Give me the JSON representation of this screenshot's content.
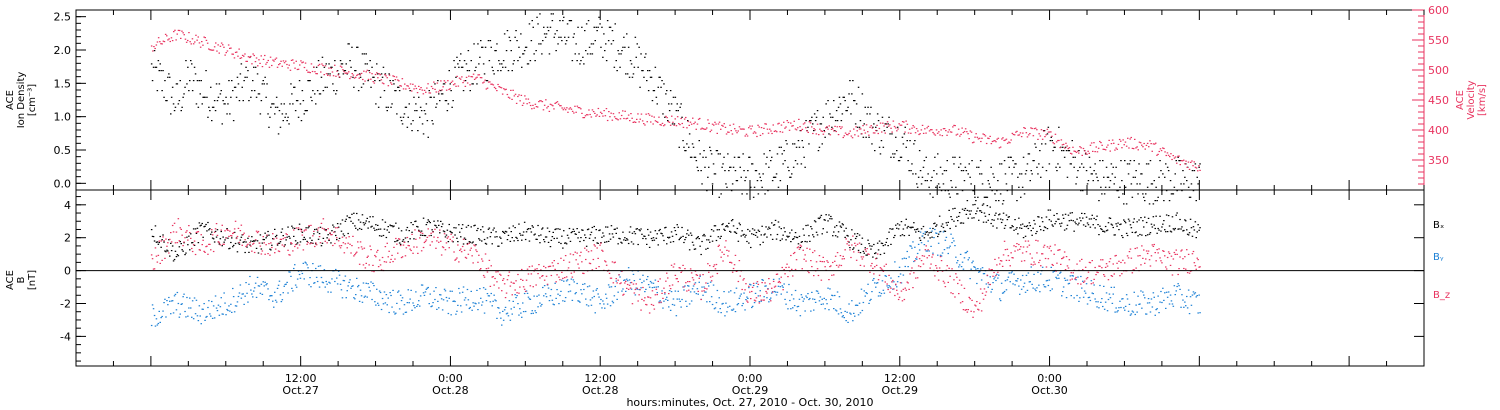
{
  "colors": {
    "black": "#000000",
    "pink": "#e8335f",
    "blue": "#1e82d6"
  },
  "chart_data": [
    {
      "type": "scatter",
      "ylabel": [
        "ACE",
        "Ion Density",
        "[cm⁻³]"
      ],
      "y2label": [
        "ACE",
        "Velocity",
        "[km/s]"
      ],
      "ylim": [
        -0.1,
        2.6
      ],
      "yticks": [
        0.0,
        0.5,
        1.0,
        1.5,
        2.0,
        2.5
      ],
      "ytick_labels": [
        "0.0",
        "0.5",
        "1.0",
        "1.5",
        "2.0",
        "2.5"
      ],
      "y2lim": [
        300,
        600
      ],
      "y2ticks": [
        350,
        400,
        450,
        500,
        550,
        600
      ],
      "y2tick_labels": [
        "350",
        "400",
        "450",
        "500",
        "550",
        "600"
      ],
      "series": [
        {
          "axis": "left",
          "color": "#000000",
          "x": [
            0,
            1,
            2,
            3,
            4,
            6,
            8,
            10,
            12,
            14,
            16,
            18,
            20,
            22,
            24,
            26,
            28,
            30,
            31,
            32,
            34,
            36,
            38,
            40,
            42,
            44,
            46,
            48,
            50,
            52,
            54,
            56,
            58,
            60,
            62,
            64,
            66,
            68,
            70,
            72,
            74,
            76,
            78,
            80,
            82,
            84
          ],
          "y": [
            1.7,
            1.5,
            1.2,
            1.6,
            1.4,
            1.2,
            1.6,
            1.0,
            1.3,
            1.6,
            1.8,
            1.5,
            1.2,
            1.0,
            1.5,
            1.8,
            2.0,
            2.1,
            2.2,
            2.3,
            2.1,
            2.2,
            2.0,
            1.6,
            1.0,
            0.3,
            0.1,
            0.1,
            0.2,
            0.5,
            1.0,
            1.3,
            0.8,
            0.7,
            0.1,
            0.1,
            0.05,
            0.05,
            0.1,
            0.6,
            0.3,
            0.05,
            0.05,
            0.05,
            0.05,
            0.05
          ]
        },
        {
          "axis": "right",
          "color": "#e8335f",
          "x": [
            0,
            2,
            4,
            6,
            8,
            10,
            12,
            14,
            16,
            18,
            20,
            22,
            24,
            26,
            28,
            30,
            32,
            34,
            36,
            38,
            40,
            42,
            44,
            46,
            48,
            50,
            52,
            54,
            56,
            58,
            60,
            62,
            64,
            66,
            68,
            70,
            72,
            74,
            76,
            78,
            80,
            82,
            84
          ],
          "y": [
            540,
            560,
            548,
            535,
            520,
            512,
            508,
            502,
            496,
            488,
            478,
            468,
            478,
            488,
            466,
            448,
            440,
            433,
            428,
            423,
            418,
            416,
            411,
            402,
            398,
            405,
            410,
            400,
            395,
            404,
            408,
            400,
            402,
            388,
            380,
            398,
            392,
            365,
            372,
            380,
            375,
            352,
            340
          ]
        }
      ]
    },
    {
      "type": "scatter",
      "ylabel": [
        "ACE",
        "B",
        "[nT]"
      ],
      "ylim": [
        -5.8,
        4.9
      ],
      "yticks": [
        -4,
        -2,
        0,
        2,
        4
      ],
      "ytick_labels": [
        "-4",
        "-2",
        "0",
        "2",
        "4"
      ],
      "series": [
        {
          "name": "Bₓ",
          "color": "#000000",
          "x": [
            0,
            2,
            4,
            6,
            8,
            10,
            12,
            14,
            16,
            18,
            20,
            22,
            24,
            26,
            28,
            30,
            32,
            34,
            36,
            38,
            40,
            42,
            44,
            46,
            48,
            50,
            52,
            54,
            56,
            58,
            60,
            62,
            64,
            66,
            68,
            70,
            72,
            74,
            76,
            78,
            80,
            82,
            84
          ],
          "y": [
            2.5,
            1.0,
            2.5,
            2.0,
            1.5,
            2.0,
            2.3,
            2.0,
            3.0,
            2.8,
            2.2,
            2.7,
            2.3,
            2.2,
            2.0,
            2.4,
            2.0,
            2.0,
            2.2,
            2.2,
            2.0,
            2.3,
            1.5,
            2.8,
            2.0,
            2.5,
            2.0,
            3.0,
            2.0,
            1.0,
            2.7,
            2.2,
            3.2,
            3.8,
            3.0,
            2.5,
            3.2,
            3.0,
            2.8,
            2.6,
            2.8,
            3.0,
            2.3
          ]
        },
        {
          "name": "Bᵧ",
          "color": "#1e82d6",
          "x": [
            0,
            2,
            4,
            6,
            8,
            10,
            12,
            14,
            16,
            18,
            20,
            22,
            24,
            26,
            28,
            30,
            32,
            34,
            36,
            38,
            40,
            42,
            44,
            46,
            48,
            50,
            52,
            54,
            56,
            58,
            60,
            62,
            64,
            66,
            68,
            70,
            72,
            74,
            76,
            78,
            80,
            82,
            84
          ],
          "y": [
            -2.8,
            -2.0,
            -2.5,
            -2.0,
            -1.0,
            -1.5,
            0.0,
            -0.5,
            -1.0,
            -1.5,
            -2.0,
            -1.5,
            -2.0,
            -1.5,
            -2.5,
            -2.0,
            -1.5,
            -1.0,
            -2.0,
            -0.5,
            -1.0,
            -2.0,
            -1.0,
            -2.0,
            -1.5,
            -1.0,
            -2.0,
            -1.5,
            -2.5,
            -1.0,
            0.0,
            2.0,
            1.5,
            0.0,
            -1.0,
            -0.5,
            -0.5,
            -1.0,
            -1.5,
            -2.0,
            -2.0,
            -1.5,
            -2.0
          ]
        },
        {
          "name": "B_z",
          "color": "#e8335f",
          "x": [
            0,
            2,
            4,
            6,
            8,
            10,
            12,
            14,
            16,
            18,
            20,
            22,
            24,
            26,
            28,
            30,
            32,
            34,
            36,
            38,
            40,
            42,
            44,
            46,
            48,
            50,
            52,
            54,
            56,
            58,
            60,
            62,
            64,
            66,
            68,
            70,
            72,
            74,
            76,
            78,
            80,
            82,
            84
          ],
          "y": [
            0.5,
            2.5,
            1.5,
            2.5,
            2.0,
            1.5,
            2.0,
            2.5,
            1.5,
            0.5,
            1.5,
            2.0,
            1.5,
            1.0,
            -1.0,
            -0.5,
            0.0,
            0.5,
            1.0,
            -1.0,
            -2.0,
            0.0,
            -1.0,
            1.5,
            -1.5,
            -1.0,
            1.0,
            0.0,
            1.5,
            0.5,
            -1.5,
            1.0,
            -0.5,
            -2.5,
            1.0,
            1.2,
            1.0,
            0.0,
            0.0,
            0.5,
            1.0,
            0.5,
            0.8
          ]
        }
      ]
    }
  ],
  "x_axis": {
    "xlim": [
      -6,
      102
    ],
    "major_ticks": [
      0,
      12,
      24,
      36,
      48,
      60,
      72,
      84
    ],
    "tick_labels": [
      {
        "x": 12,
        "time": "12:00",
        "date": "Oct.27"
      },
      {
        "x": 24,
        "time": "0:00",
        "date": "Oct.28"
      },
      {
        "x": 36,
        "time": "12:00",
        "date": "Oct.28"
      },
      {
        "x": 48,
        "time": "0:00",
        "date": "Oct.29"
      },
      {
        "x": 60,
        "time": "12:00",
        "date": "Oct.29"
      },
      {
        "x": 72,
        "time": "0:00",
        "date": "Oct.30"
      }
    ],
    "label": "hours:minutes, Oct. 27, 2010 - Oct. 30, 2010"
  },
  "legend": [
    {
      "label": "Bₓ",
      "color": "#000000"
    },
    {
      "label": "Bᵧ",
      "color": "#1e82d6"
    },
    {
      "label": "B_z",
      "color": "#e8335f"
    }
  ]
}
